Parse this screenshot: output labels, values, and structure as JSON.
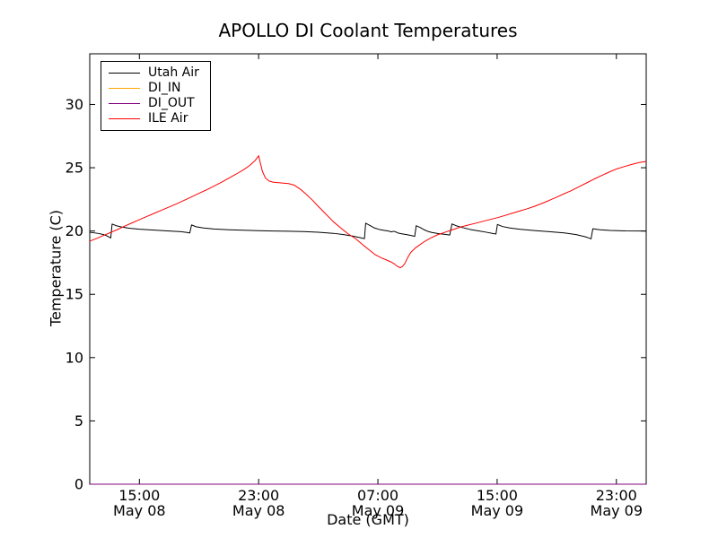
{
  "chart_data": {
    "type": "line",
    "title": "APOLLO DI Coolant Temperatures",
    "xlabel": "Date (GMT)",
    "ylabel": "Temperature (C)",
    "x_unit": "hours since May 08 00:00 GMT",
    "xlim": [
      11.67,
      49.0
    ],
    "ylim": [
      0,
      34
    ],
    "grid": false,
    "y_ticks": [
      0,
      5,
      10,
      15,
      20,
      25,
      30
    ],
    "x_ticks": [
      {
        "hour": 15,
        "time": "15:00",
        "date": "May 08"
      },
      {
        "hour": 23,
        "time": "23:00",
        "date": "May 08"
      },
      {
        "hour": 31,
        "time": "07:00",
        "date": "May 09"
      },
      {
        "hour": 39,
        "time": "15:00",
        "date": "May 09"
      },
      {
        "hour": 47,
        "time": "23:00",
        "date": "May 09"
      }
    ],
    "legend": {
      "position": "upper left"
    },
    "axis_color": "#000000",
    "series": [
      {
        "name": "Utah Air",
        "color": "#000000",
        "points": [
          [
            11.67,
            19.9
          ],
          [
            12.2,
            19.82
          ],
          [
            12.6,
            19.72
          ],
          [
            12.85,
            19.6
          ],
          [
            13.0,
            19.5
          ],
          [
            13.08,
            19.45
          ],
          [
            13.17,
            20.55
          ],
          [
            13.45,
            20.42
          ],
          [
            13.8,
            20.32
          ],
          [
            14.3,
            20.22
          ],
          [
            15.0,
            20.14
          ],
          [
            16.0,
            20.07
          ],
          [
            17.0,
            20.0
          ],
          [
            17.8,
            19.95
          ],
          [
            18.25,
            19.88
          ],
          [
            18.38,
            19.84
          ],
          [
            18.5,
            20.48
          ],
          [
            18.8,
            20.34
          ],
          [
            19.3,
            20.24
          ],
          [
            20.0,
            20.16
          ],
          [
            21.0,
            20.1
          ],
          [
            22.0,
            20.06
          ],
          [
            23.0,
            20.03
          ],
          [
            24.0,
            20.0
          ],
          [
            25.0,
            19.98
          ],
          [
            26.0,
            19.96
          ],
          [
            27.0,
            19.9
          ],
          [
            28.0,
            19.82
          ],
          [
            28.7,
            19.72
          ],
          [
            29.3,
            19.6
          ],
          [
            29.8,
            19.48
          ],
          [
            30.02,
            19.42
          ],
          [
            30.1,
            19.4
          ],
          [
            30.18,
            20.62
          ],
          [
            30.45,
            20.45
          ],
          [
            30.75,
            20.25
          ],
          [
            31.1,
            20.12
          ],
          [
            31.5,
            20.04
          ],
          [
            31.75,
            19.99
          ],
          [
            31.9,
            19.93
          ],
          [
            32.05,
            19.98
          ],
          [
            32.2,
            19.93
          ],
          [
            32.38,
            19.83
          ],
          [
            32.6,
            19.78
          ],
          [
            33.0,
            19.7
          ],
          [
            33.3,
            19.63
          ],
          [
            33.47,
            19.58
          ],
          [
            33.57,
            20.42
          ],
          [
            33.85,
            20.27
          ],
          [
            34.1,
            20.1
          ],
          [
            34.38,
            19.96
          ],
          [
            34.65,
            19.88
          ],
          [
            35.05,
            19.8
          ],
          [
            35.5,
            19.74
          ],
          [
            35.82,
            19.68
          ],
          [
            35.97,
            20.56
          ],
          [
            36.25,
            20.42
          ],
          [
            36.65,
            20.28
          ],
          [
            37.2,
            20.12
          ],
          [
            37.8,
            20.0
          ],
          [
            38.3,
            19.9
          ],
          [
            38.75,
            19.8
          ],
          [
            38.92,
            19.76
          ],
          [
            39.02,
            20.52
          ],
          [
            39.35,
            20.36
          ],
          [
            39.85,
            20.24
          ],
          [
            40.5,
            20.14
          ],
          [
            41.5,
            20.04
          ],
          [
            42.5,
            19.95
          ],
          [
            43.5,
            19.85
          ],
          [
            44.3,
            19.72
          ],
          [
            44.9,
            19.55
          ],
          [
            45.18,
            19.44
          ],
          [
            45.3,
            19.38
          ],
          [
            45.42,
            20.18
          ],
          [
            45.9,
            20.1
          ],
          [
            46.6,
            20.05
          ],
          [
            47.6,
            20.01
          ],
          [
            49.0,
            20.0
          ]
        ]
      },
      {
        "name": "DI_IN",
        "color": "#ffa500",
        "points": [
          [
            11.67,
            0
          ],
          [
            49.0,
            0
          ]
        ]
      },
      {
        "name": "DI_OUT",
        "color": "#800080",
        "points": [
          [
            11.67,
            0
          ],
          [
            49.0,
            0
          ]
        ]
      },
      {
        "name": "ILE Air",
        "color": "#ff0000",
        "points": [
          [
            11.67,
            19.2
          ],
          [
            12.0,
            19.35
          ],
          [
            12.5,
            19.6
          ],
          [
            13.0,
            19.85
          ],
          [
            13.5,
            20.1
          ],
          [
            14.0,
            20.38
          ],
          [
            14.5,
            20.64
          ],
          [
            15.0,
            20.9
          ],
          [
            15.5,
            21.15
          ],
          [
            16.0,
            21.4
          ],
          [
            16.5,
            21.65
          ],
          [
            17.0,
            21.9
          ],
          [
            17.5,
            22.15
          ],
          [
            18.0,
            22.42
          ],
          [
            18.5,
            22.7
          ],
          [
            19.0,
            22.98
          ],
          [
            19.5,
            23.25
          ],
          [
            20.0,
            23.55
          ],
          [
            20.5,
            23.85
          ],
          [
            21.0,
            24.18
          ],
          [
            21.5,
            24.5
          ],
          [
            22.0,
            24.85
          ],
          [
            22.4,
            25.18
          ],
          [
            22.75,
            25.55
          ],
          [
            23.0,
            25.95
          ],
          [
            23.1,
            25.45
          ],
          [
            23.25,
            24.72
          ],
          [
            23.45,
            24.2
          ],
          [
            23.7,
            23.95
          ],
          [
            24.0,
            23.85
          ],
          [
            24.5,
            23.8
          ],
          [
            25.0,
            23.75
          ],
          [
            25.4,
            23.62
          ],
          [
            25.8,
            23.3
          ],
          [
            26.2,
            22.9
          ],
          [
            26.6,
            22.45
          ],
          [
            27.0,
            21.95
          ],
          [
            27.5,
            21.35
          ],
          [
            28.0,
            20.75
          ],
          [
            28.5,
            20.25
          ],
          [
            29.0,
            19.78
          ],
          [
            29.5,
            19.4
          ],
          [
            30.0,
            18.9
          ],
          [
            30.4,
            18.52
          ],
          [
            30.8,
            18.15
          ],
          [
            31.2,
            17.9
          ],
          [
            31.6,
            17.7
          ],
          [
            31.9,
            17.55
          ],
          [
            32.1,
            17.4
          ],
          [
            32.3,
            17.22
          ],
          [
            32.5,
            17.1
          ],
          [
            32.65,
            17.2
          ],
          [
            32.8,
            17.42
          ],
          [
            33.0,
            17.9
          ],
          [
            33.2,
            18.3
          ],
          [
            33.5,
            18.65
          ],
          [
            33.8,
            18.9
          ],
          [
            34.1,
            19.15
          ],
          [
            34.5,
            19.42
          ],
          [
            35.0,
            19.7
          ],
          [
            35.5,
            19.9
          ],
          [
            36.0,
            20.1
          ],
          [
            36.5,
            20.3
          ],
          [
            37.0,
            20.45
          ],
          [
            37.5,
            20.6
          ],
          [
            38.0,
            20.75
          ],
          [
            38.5,
            20.9
          ],
          [
            39.0,
            21.05
          ],
          [
            39.5,
            21.22
          ],
          [
            40.0,
            21.4
          ],
          [
            40.5,
            21.58
          ],
          [
            41.0,
            21.75
          ],
          [
            41.5,
            21.95
          ],
          [
            42.0,
            22.18
          ],
          [
            42.5,
            22.42
          ],
          [
            43.0,
            22.68
          ],
          [
            43.5,
            22.95
          ],
          [
            44.0,
            23.2
          ],
          [
            44.5,
            23.5
          ],
          [
            45.0,
            23.8
          ],
          [
            45.5,
            24.1
          ],
          [
            46.0,
            24.38
          ],
          [
            46.5,
            24.65
          ],
          [
            47.0,
            24.9
          ],
          [
            47.5,
            25.08
          ],
          [
            48.0,
            25.25
          ],
          [
            48.5,
            25.4
          ],
          [
            49.0,
            25.5
          ]
        ]
      }
    ]
  }
}
